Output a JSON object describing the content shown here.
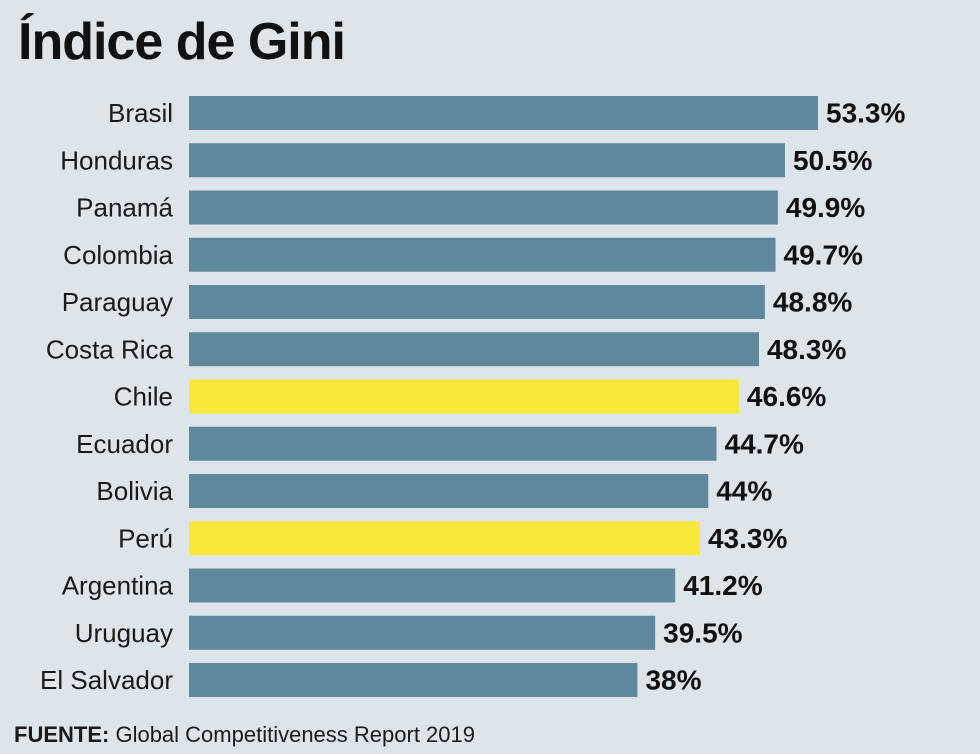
{
  "colors": {
    "background": "#dde4ea",
    "bar_default": "#5f889c",
    "bar_highlight": "#f8e83a",
    "text": "#111111"
  },
  "chart_data": {
    "type": "bar",
    "orientation": "horizontal",
    "title": "Índice de Gini",
    "categories": [
      "Brasil",
      "Honduras",
      "Panamá",
      "Colombia",
      "Paraguay",
      "Costa Rica",
      "Chile",
      "Ecuador",
      "Bolivia",
      "Perú",
      "Argentina",
      "Uruguay",
      "El Salvador"
    ],
    "values": [
      53.3,
      50.5,
      49.9,
      49.7,
      48.8,
      48.3,
      46.6,
      44.7,
      44,
      43.3,
      41.2,
      39.5,
      38
    ],
    "value_labels": [
      "53.3%",
      "50.5%",
      "49.9%",
      "49.7%",
      "48.8%",
      "48.3%",
      "46.6%",
      "44.7%",
      "44%",
      "43.3%",
      "41.2%",
      "39.5%",
      "38%"
    ],
    "highlighted": [
      "Chile",
      "Perú"
    ],
    "xlabel": "",
    "ylabel": "",
    "xlim": [
      0,
      53.3
    ],
    "grid": false,
    "legend": "none"
  },
  "source": {
    "label": "FUENTE:",
    "text": "Global Competitiveness Report 2019"
  }
}
